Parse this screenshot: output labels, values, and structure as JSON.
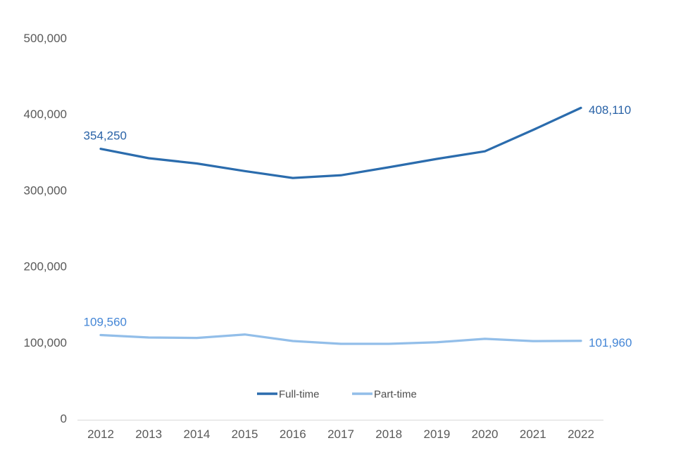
{
  "chart_data": {
    "type": "line",
    "title": "",
    "x_labels": [
      "2012",
      "2013",
      "2014",
      "2015",
      "2016",
      "2017",
      "2018",
      "2019",
      "2020",
      "2021",
      "2022"
    ],
    "ytick_labels": [
      "0",
      "100,000",
      "200,000",
      "300,000",
      "400,000",
      "500,000"
    ],
    "ytick_values": [
      0,
      100000,
      200000,
      300000,
      400000,
      500000
    ],
    "ylim": [
      0,
      500000
    ],
    "grid": "off",
    "legend_position": "bottom-center",
    "background_color": "#ffffff",
    "axis_label_color": "#595959",
    "legend_text_color": "#4d4d4d",
    "axis_line_color": "#d9d9d9",
    "series": [
      {
        "name": "Full-time",
        "color": "#2B6CAD",
        "label_color": "#2A63A7",
        "values": [
          354250,
          342000,
          335000,
          325000,
          316000,
          319500,
          330000,
          341000,
          351000,
          379000,
          408110
        ],
        "start_label": "354,250",
        "end_label": "408,110"
      },
      {
        "name": "Part-time",
        "color": "#92BEE9",
        "label_color": "#4486D6",
        "values": [
          109560,
          106300,
          105700,
          110300,
          101700,
          98000,
          98000,
          100000,
          104500,
          101600,
          101960
        ],
        "start_label": "109,560",
        "end_label": "101,960"
      }
    ]
  }
}
